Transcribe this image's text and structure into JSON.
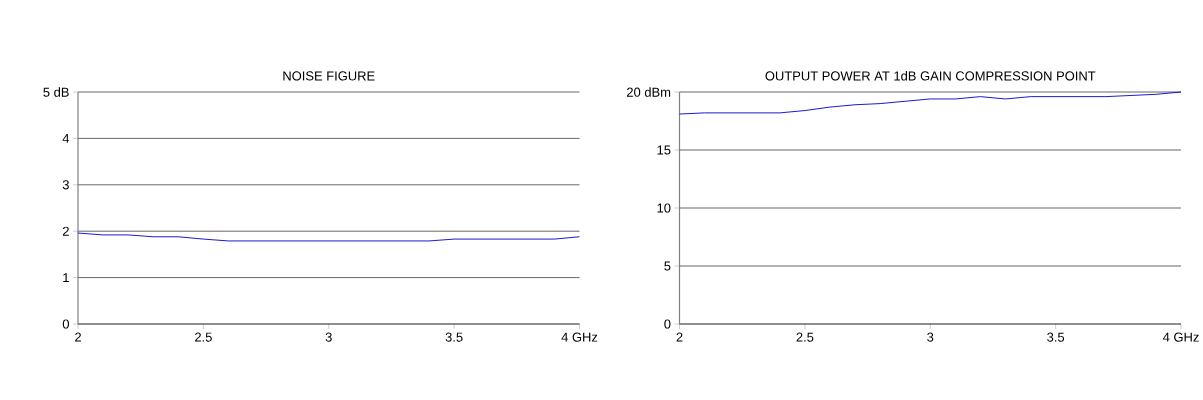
{
  "chart_data": [
    {
      "type": "line",
      "title": "NOISE FIGURE",
      "x": [
        2.0,
        2.1,
        2.2,
        2.3,
        2.4,
        2.5,
        2.6,
        2.7,
        2.8,
        2.9,
        3.0,
        3.1,
        3.2,
        3.3,
        3.4,
        3.5,
        3.6,
        3.7,
        3.8,
        3.9,
        4.0
      ],
      "values": [
        1.96,
        1.92,
        1.92,
        1.88,
        1.88,
        1.83,
        1.79,
        1.79,
        1.79,
        1.79,
        1.79,
        1.79,
        1.79,
        1.79,
        1.79,
        1.83,
        1.83,
        1.83,
        1.83,
        1.83,
        1.88
      ],
      "color": "#0000cc",
      "xlim": [
        2,
        4
      ],
      "ylim": [
        0,
        5
      ],
      "xticks": [
        2,
        2.5,
        3,
        3.5,
        {
          "value": 4,
          "label": "4 GHz"
        }
      ],
      "yticks": [
        0,
        1,
        2,
        3,
        4,
        {
          "value": 5,
          "label": "5 dB"
        }
      ],
      "grid": "y",
      "marker": "none"
    },
    {
      "type": "line",
      "title": "OUTPUT POWER AT 1dB GAIN COMPRESSION POINT",
      "x": [
        2.0,
        2.1,
        2.2,
        2.3,
        2.4,
        2.5,
        2.6,
        2.7,
        2.8,
        2.9,
        3.0,
        3.1,
        3.2,
        3.3,
        3.4,
        3.5,
        3.6,
        3.7,
        3.8,
        3.9,
        4.0
      ],
      "values": [
        18.1,
        18.2,
        18.2,
        18.2,
        18.2,
        18.4,
        18.7,
        18.9,
        19.0,
        19.2,
        19.4,
        19.4,
        19.6,
        19.4,
        19.6,
        19.6,
        19.6,
        19.6,
        19.7,
        19.8,
        20.0
      ],
      "color": "#0000cc",
      "xlim": [
        2,
        4
      ],
      "ylim": [
        0,
        20
      ],
      "xticks": [
        2,
        2.5,
        3,
        3.5,
        {
          "value": 4,
          "label": "4 GHz"
        }
      ],
      "yticks": [
        0,
        5,
        10,
        15,
        {
          "value": 20,
          "label": "20 dBm"
        }
      ],
      "grid": "y",
      "marker": "none"
    }
  ]
}
